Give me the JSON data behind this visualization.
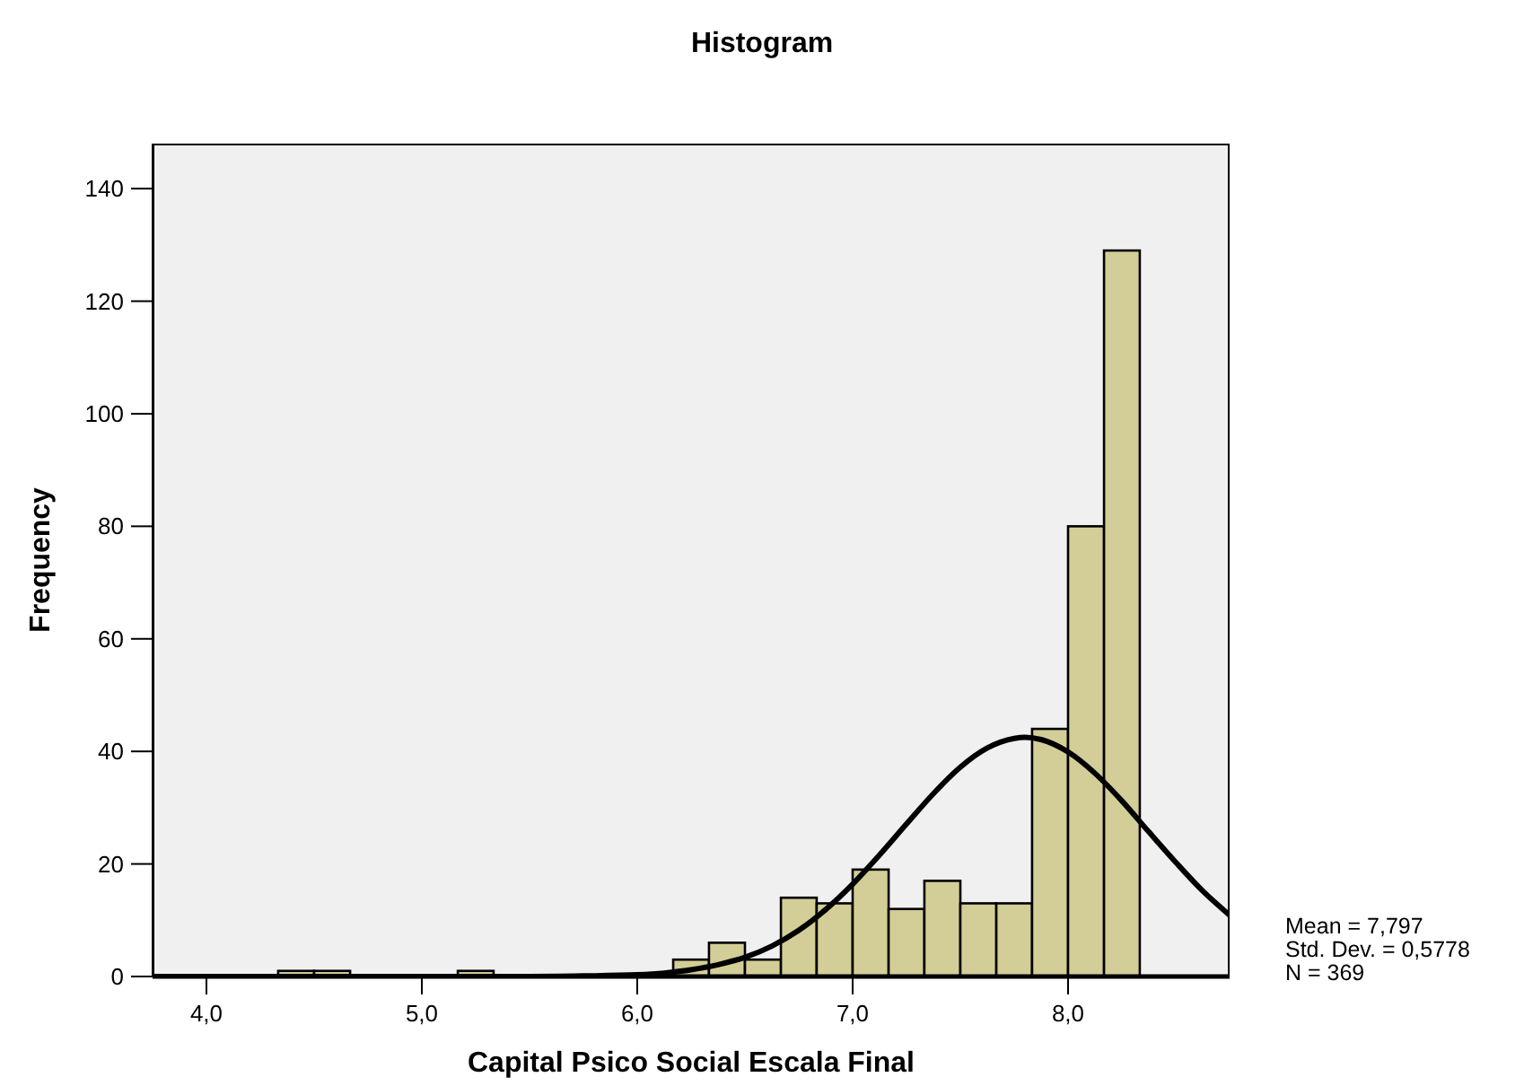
{
  "chart_data": {
    "type": "histogram",
    "title": "Histogram",
    "xlabel": "Capital Psico Social Escala Final",
    "ylabel": "Frequency",
    "bins": [
      4.333,
      4.5,
      4.667,
      4.833,
      5,
      5.167,
      5.333,
      5.5,
      5.667,
      5.833,
      6,
      6.167,
      6.333,
      6.5,
      6.667,
      6.833,
      7,
      7.167,
      7.333,
      7.5,
      7.667,
      7.833,
      8,
      8.167,
      8.333
    ],
    "series": [
      {
        "color": "#d3ce97",
        "values": [
          1,
          1,
          0,
          0,
          0,
          1,
          0,
          0,
          0,
          0,
          0,
          3,
          6,
          3,
          14,
          13,
          19,
          12,
          17,
          13,
          13,
          44,
          80,
          129
        ]
      },
      {
        "type": "line",
        "color": "#000000",
        "x": [
          3.75,
          5,
          5.5,
          5.75,
          6,
          6.125,
          6.25,
          6.375,
          6.5,
          6.625,
          6.75,
          6.875,
          7,
          7.125,
          7.25,
          7.375,
          7.5,
          7.625,
          7.75,
          7.8,
          7.875,
          8,
          8.125,
          8.25,
          8.375,
          8.5,
          8.625,
          8.75
        ],
        "values": [
          0,
          0,
          0,
          0.1,
          0.3,
          0.6,
          1.2,
          2.1,
          3.4,
          5.4,
          8.2,
          11.9,
          16.4,
          21.6,
          27.1,
          32.5,
          37.2,
          40.6,
          42.3,
          42.5,
          42.1,
          39.9,
          36.1,
          31.2,
          25.7,
          20.3,
          15.2,
          10.9
        ]
      }
    ],
    "xlim": [
      3.75,
      8.75
    ],
    "xticks": [
      {
        "value": 4,
        "label": "4,0"
      },
      {
        "value": 5,
        "label": "5,0"
      },
      {
        "value": 6,
        "label": "6,0"
      },
      {
        "value": 7,
        "label": "7,0"
      },
      {
        "value": 8,
        "label": "8,0"
      }
    ],
    "ylim": [
      0,
      148
    ],
    "yticks": [
      0,
      20,
      40,
      60,
      80,
      100,
      120,
      140
    ],
    "annotations": [
      "Mean = 7,797",
      "Std. Dev. = 0,5778",
      "N = 369"
    ]
  }
}
